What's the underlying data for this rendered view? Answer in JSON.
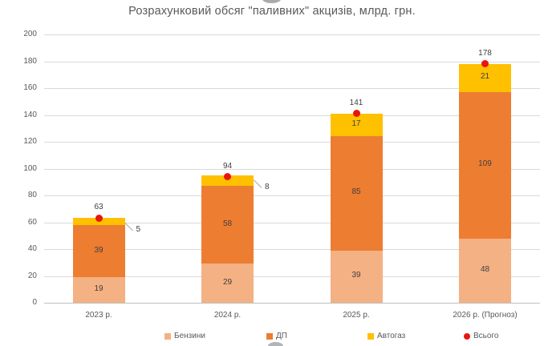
{
  "chart_data": {
    "type": "bar",
    "subtype": "stacked-column-with-total-marker",
    "title": "Розрахунковий обсяг \"паливних\" акцизів, млрд. грн.",
    "categories": [
      "2023 р.",
      "2024 р.",
      "2025 р.",
      "2026 р. (Прогноз)"
    ],
    "series": [
      {
        "name": "Бензини",
        "color": "#F4B183",
        "values": [
          19,
          29,
          39,
          48
        ]
      },
      {
        "name": "ДП",
        "color": "#ED7D31",
        "values": [
          39,
          58,
          85,
          109
        ]
      },
      {
        "name": "Автогаз",
        "color": "#FFC000",
        "values": [
          5,
          8,
          17,
          21
        ]
      }
    ],
    "totals": {
      "name": "Всього",
      "marker": "red-dot",
      "color": "#E8150D",
      "values": [
        63,
        94,
        141,
        178
      ]
    },
    "callout_labels": [
      {
        "category": 0,
        "series": "Автогаз",
        "value": 5
      },
      {
        "category": 1,
        "series": "Автогаз",
        "value": 8
      }
    ],
    "ylim": [
      0,
      200
    ],
    "ytick_step": 20,
    "grid": true,
    "legend_position": "bottom",
    "legend": [
      {
        "label": "Бензини",
        "swatch": "square",
        "color": "#F4B183"
      },
      {
        "label": "ДП",
        "swatch": "square",
        "color": "#ED7D31"
      },
      {
        "label": "Автогаз",
        "swatch": "square",
        "color": "#FFC000"
      },
      {
        "label": "Всього",
        "swatch": "circle",
        "color": "#E8150D"
      }
    ]
  },
  "colors": {
    "gridline": "#D9D9D9",
    "axis_line": "#BFBFBF",
    "axis_text": "#595959",
    "label_text": "#404040",
    "title_text": "#595959",
    "leader_line": "#A6A6A6",
    "edge_handle": "#9B9B9B"
  },
  "icons": {
    "top_edge_handle": "partial-gray-circle",
    "bottom_edge_handle": "partial-gray-circle"
  }
}
